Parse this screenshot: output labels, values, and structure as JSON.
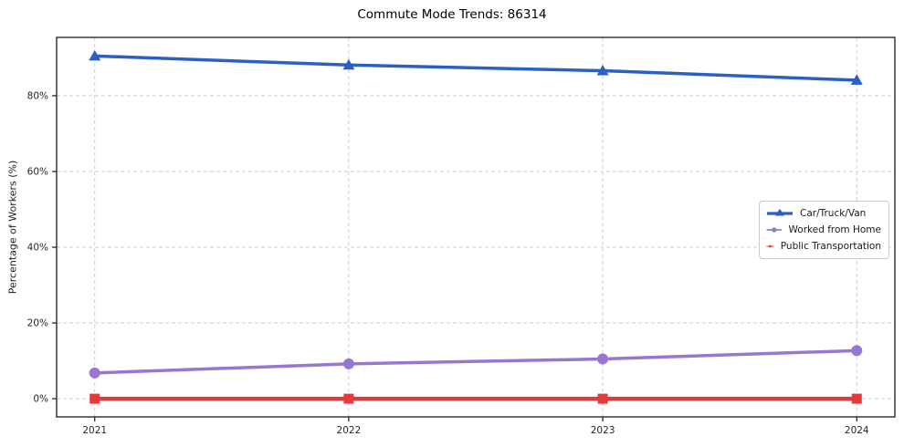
{
  "chart_data": {
    "type": "line",
    "title": "Commute Mode Trends: 86314",
    "xlabel": "",
    "ylabel": "Percentage of Workers (%)",
    "x": [
      2021,
      2022,
      2023,
      2024
    ],
    "x_tick_labels": [
      "2021",
      "2022",
      "2023",
      "2024"
    ],
    "y_ticks": [
      0,
      20,
      40,
      60,
      80
    ],
    "y_tick_labels": [
      "0%",
      "20%",
      "40%",
      "60%",
      "80%"
    ],
    "xlim": [
      2020.85,
      2024.15
    ],
    "ylim": [
      -4.8,
      95.4
    ],
    "grid": true,
    "grid_style": "dashed",
    "grid_color": "#cccccc",
    "frame_color": "#1a1a1a",
    "tick_label_color": "#262626",
    "background_color": "#ffffff",
    "legend_position": "center-right",
    "series": [
      {
        "name": "Car/Truck/Van",
        "color": "#2a5fc4",
        "marker": "triangle",
        "line_width": 3.5,
        "values": [
          90.5,
          88.1,
          86.6,
          84.1
        ]
      },
      {
        "name": "Worked from Home",
        "color": "#9678d1",
        "marker": "circle",
        "line_width": 3.5,
        "values": [
          6.8,
          9.2,
          10.5,
          12.7
        ]
      },
      {
        "name": "Public Transportation",
        "color": "#e23b3e",
        "marker": "square",
        "line_width": 4.5,
        "values": [
          0.0,
          0.0,
          0.0,
          0.0
        ]
      }
    ]
  }
}
